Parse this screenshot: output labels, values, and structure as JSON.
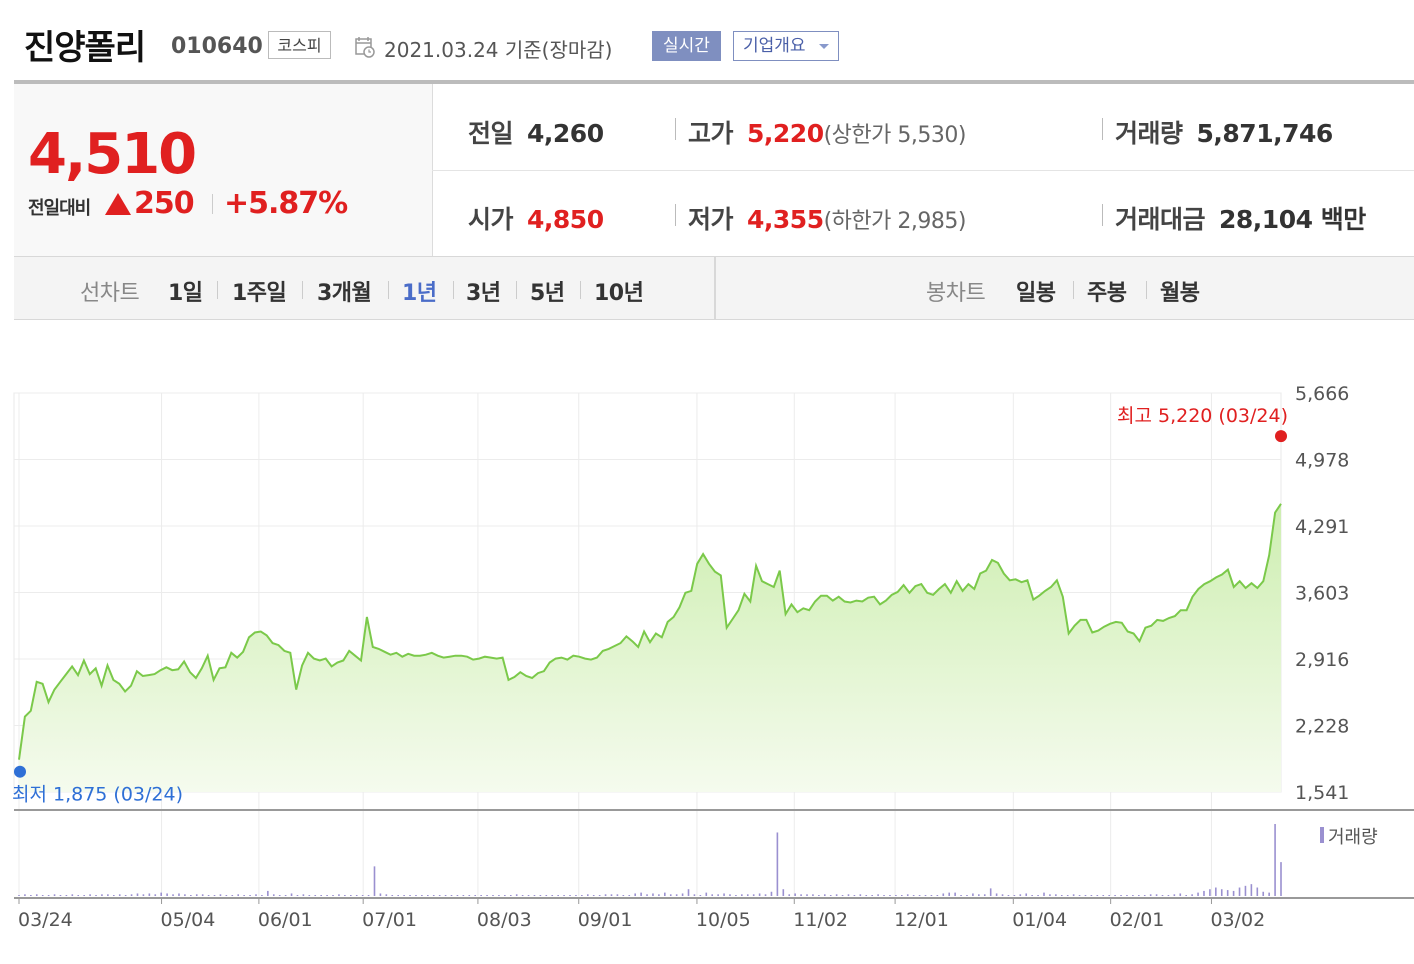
{
  "header": {
    "company": "진양폴리",
    "code": "010640",
    "market": "코스피",
    "as_of": "2021.03.24  기준(장마감)",
    "realtime_label": "실시간",
    "overview_label": "기업개요"
  },
  "quote": {
    "price": "4,510",
    "change_label": "전일대비",
    "change": "250",
    "change_pct": "+5.87%",
    "direction": "up",
    "up_color": "#e02020"
  },
  "stats": {
    "prev_close_label": "전일",
    "prev_close": "4,260",
    "high_label": "고가",
    "high": "5,220",
    "upper_limit": "(상한가 5,530)",
    "volume_label": "거래량",
    "volume": "5,871,746",
    "open_label": "시가",
    "open": "4,850",
    "low_label": "저가",
    "low": "4,355",
    "lower_limit": "(하한가 2,985)",
    "amount_label": "거래대금",
    "amount": "28,104 백만"
  },
  "period_bar": {
    "line_label": "선차트",
    "line_periods": [
      "1일",
      "1주일",
      "3개월",
      "1년",
      "3년",
      "5년",
      "10년"
    ],
    "active_period": "1년",
    "candle_label": "봉차트",
    "candle_periods": [
      "일봉",
      "주봉",
      "월봉"
    ]
  },
  "chart_data": {
    "type": "area",
    "series": [
      {
        "values": [
          1875,
          2320,
          2380,
          2680,
          2660,
          2470,
          2600,
          2680,
          2760,
          2840,
          2750,
          2900,
          2760,
          2820,
          2640,
          2850,
          2700,
          2660,
          2580,
          2640,
          2790,
          2740,
          2750,
          2760,
          2800,
          2830,
          2800,
          2810,
          2890,
          2780,
          2720,
          2820,
          2950,
          2700,
          2820,
          2830,
          2980,
          2930,
          2990,
          3140,
          3190,
          3200,
          3160,
          3080,
          3060,
          3000,
          2980,
          2600,
          2850,
          2980,
          2920,
          2900,
          2920,
          2840,
          2880,
          2900,
          3000,
          2950,
          2900,
          3350,
          3040,
          3020,
          2990,
          2960,
          2980,
          2940,
          2970,
          2950,
          2950,
          2960,
          2980,
          2950,
          2930,
          2940,
          2950,
          2950,
          2940,
          2910,
          2920,
          2940,
          2930,
          2920,
          2930,
          2700,
          2730,
          2780,
          2740,
          2720,
          2770,
          2790,
          2880,
          2920,
          2930,
          2910,
          2950,
          2940,
          2920,
          2910,
          2930,
          3000,
          3020,
          3050,
          3080,
          3150,
          3100,
          3040,
          3200,
          3090,
          3180,
          3140,
          3300,
          3350,
          3450,
          3600,
          3620,
          3900,
          4000,
          3900,
          3820,
          3780,
          3240,
          3330,
          3420,
          3590,
          3510,
          3880,
          3720,
          3690,
          3660,
          3830,
          3380,
          3480,
          3400,
          3440,
          3420,
          3510,
          3570,
          3570,
          3520,
          3560,
          3510,
          3500,
          3520,
          3510,
          3550,
          3560,
          3480,
          3520,
          3580,
          3610,
          3680,
          3600,
          3670,
          3690,
          3600,
          3580,
          3640,
          3690,
          3600,
          3720,
          3620,
          3690,
          3640,
          3800,
          3830,
          3940,
          3910,
          3800,
          3730,
          3740,
          3710,
          3730,
          3530,
          3570,
          3620,
          3660,
          3730,
          3560,
          3180,
          3260,
          3320,
          3320,
          3190,
          3210,
          3250,
          3280,
          3300,
          3290,
          3200,
          3180,
          3100,
          3240,
          3260,
          3320,
          3310,
          3340,
          3360,
          3420,
          3420,
          3560,
          3640,
          3690,
          3720,
          3760,
          3790,
          3840,
          3660,
          3720,
          3650,
          3700,
          3650,
          3720,
          3990,
          4430,
          4520
        ]
      }
    ],
    "x_tick_labels": [
      "03/24",
      "05/04",
      "06/01",
      "07/01",
      "08/03",
      "09/01",
      "10/05",
      "11/02",
      "12/01",
      "01/04",
      "02/01",
      "03/02"
    ],
    "y_tick_labels": [
      "5,666",
      "4,978",
      "4,291",
      "3,603",
      "2,916",
      "2,228",
      "1,541"
    ],
    "ylim": [
      1541,
      5666
    ],
    "high_annotation": "최고 5,220 (03/24)",
    "low_annotation": "최저 1,875 (03/24)",
    "high_value": 5220,
    "low_value": 1875,
    "volume": {
      "legend": "거래량",
      "values": [
        1,
        2,
        1,
        2,
        1,
        1,
        2,
        1,
        1,
        2,
        1,
        1,
        2,
        1,
        2,
        2,
        1,
        2,
        1,
        2,
        3,
        2,
        3,
        2,
        4,
        3,
        2,
        3,
        2,
        1,
        2,
        2,
        1,
        1,
        2,
        1,
        1,
        2,
        1,
        1,
        2,
        1,
        6,
        2,
        1,
        1,
        3,
        1,
        2,
        1,
        1,
        1,
        1,
        1,
        2,
        1,
        1,
        1,
        1,
        1,
        35,
        3,
        2,
        1,
        1,
        1,
        1,
        1,
        1,
        1,
        1,
        1,
        1,
        1,
        1,
        1,
        1,
        1,
        1,
        1,
        1,
        1,
        1,
        1,
        2,
        1,
        1,
        1,
        1,
        1,
        1,
        1,
        1,
        1,
        1,
        1,
        2,
        1,
        1,
        2,
        2,
        2,
        1,
        1,
        3,
        4,
        2,
        3,
        2,
        4,
        2,
        2,
        3,
        8,
        2,
        1,
        4,
        2,
        2,
        3,
        2,
        1,
        2,
        2,
        2,
        3,
        2,
        5,
        75,
        8,
        2,
        3,
        2,
        2,
        2,
        1,
        2,
        1,
        2,
        1,
        2,
        1,
        2,
        1,
        1,
        2,
        1,
        1,
        1,
        1,
        2,
        1,
        1,
        1,
        1,
        1,
        3,
        4,
        4,
        1,
        1,
        3,
        2,
        2,
        9,
        3,
        2,
        1,
        1,
        2,
        3,
        1,
        1,
        4,
        2,
        2,
        1,
        1,
        2,
        1,
        1,
        1,
        1,
        1,
        1,
        1,
        1,
        1,
        1,
        1,
        1,
        2,
        2,
        1,
        1,
        2,
        3,
        1,
        2,
        4,
        6,
        8,
        10,
        8,
        7,
        6,
        10,
        12,
        14,
        10,
        5,
        4,
        85,
        40
      ]
    }
  },
  "colors": {
    "line": "#7bc94a",
    "fill_top": "#cdeeb0",
    "fill_bottom": "#f5fbee",
    "volume": "#9a90d0"
  }
}
